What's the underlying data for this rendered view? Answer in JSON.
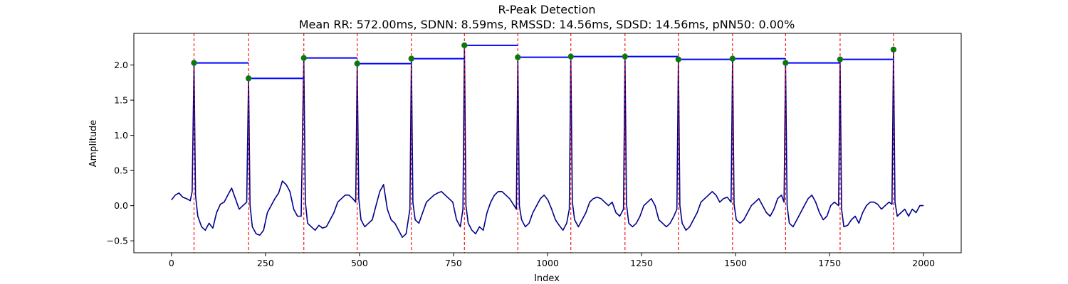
{
  "chart_data": {
    "type": "line",
    "title": "R-Peak Detection",
    "subtitle": "Mean RR: 572.00ms, SDNN: 8.59ms, RMSSD: 14.56ms, SDSD: 14.56ms, pNN50: 0.00%",
    "xlabel": "Index",
    "ylabel": "Amplitude",
    "xlim": [
      -100,
      2100
    ],
    "ylim": [
      -0.67,
      2.45
    ],
    "xticks": [
      0,
      250,
      500,
      750,
      1000,
      1250,
      1500,
      1750,
      2000
    ],
    "yticks": [
      -0.5,
      0.0,
      0.5,
      1.0,
      1.5,
      2.0
    ],
    "ytick_labels": [
      "−0.5",
      "0.0",
      "0.5",
      "1.0",
      "1.5",
      "2.0"
    ],
    "grid": false,
    "colors": {
      "signal": "#00008b",
      "peak_marker": "#008000",
      "peak_line": "#ff0000",
      "rr_segment": "#0000ff"
    },
    "peaks": [
      {
        "x": 60,
        "y": 2.03
      },
      {
        "x": 205,
        "y": 1.81
      },
      {
        "x": 352,
        "y": 2.1
      },
      {
        "x": 494,
        "y": 2.02
      },
      {
        "x": 638,
        "y": 2.09
      },
      {
        "x": 779,
        "y": 2.28
      },
      {
        "x": 921,
        "y": 2.11
      },
      {
        "x": 1062,
        "y": 2.12
      },
      {
        "x": 1206,
        "y": 2.12
      },
      {
        "x": 1348,
        "y": 2.08
      },
      {
        "x": 1492,
        "y": 2.09
      },
      {
        "x": 1633,
        "y": 2.03
      },
      {
        "x": 1778,
        "y": 2.08
      },
      {
        "x": 1920,
        "y": 2.22
      }
    ],
    "signal": {
      "x": [
        0,
        10,
        20,
        30,
        40,
        50,
        55,
        60,
        64,
        70,
        80,
        90,
        100,
        110,
        120,
        130,
        140,
        150,
        160,
        170,
        180,
        190,
        200,
        205,
        209,
        215,
        225,
        235,
        245,
        255,
        265,
        275,
        285,
        295,
        305,
        315,
        325,
        335,
        345,
        352,
        356,
        362,
        372,
        382,
        392,
        402,
        412,
        422,
        432,
        442,
        452,
        462,
        472,
        482,
        490,
        494,
        498,
        504,
        514,
        524,
        534,
        544,
        554,
        564,
        574,
        584,
        594,
        604,
        614,
        624,
        634,
        638,
        642,
        648,
        658,
        668,
        678,
        688,
        698,
        708,
        718,
        728,
        738,
        748,
        758,
        768,
        775,
        779,
        783,
        789,
        799,
        809,
        819,
        829,
        839,
        849,
        859,
        869,
        879,
        889,
        899,
        909,
        917,
        921,
        925,
        931,
        941,
        951,
        961,
        971,
        981,
        991,
        1001,
        1011,
        1021,
        1031,
        1041,
        1051,
        1058,
        1062,
        1066,
        1072,
        1082,
        1092,
        1102,
        1112,
        1122,
        1132,
        1142,
        1152,
        1162,
        1172,
        1182,
        1192,
        1202,
        1206,
        1210,
        1216,
        1226,
        1236,
        1246,
        1256,
        1266,
        1276,
        1286,
        1296,
        1306,
        1316,
        1326,
        1336,
        1344,
        1348,
        1352,
        1358,
        1368,
        1378,
        1388,
        1398,
        1408,
        1418,
        1428,
        1438,
        1448,
        1458,
        1468,
        1478,
        1488,
        1492,
        1496,
        1502,
        1512,
        1522,
        1532,
        1542,
        1552,
        1562,
        1572,
        1582,
        1592,
        1602,
        1612,
        1622,
        1629,
        1633,
        1637,
        1643,
        1653,
        1663,
        1673,
        1683,
        1693,
        1703,
        1713,
        1723,
        1733,
        1743,
        1753,
        1763,
        1774,
        1778,
        1782,
        1788,
        1798,
        1808,
        1818,
        1828,
        1838,
        1848,
        1858,
        1868,
        1878,
        1888,
        1898,
        1908,
        1916,
        1920,
        1924,
        1930,
        1940,
        1950,
        1960,
        1970,
        1980,
        1990,
        2000
      ],
      "y": [
        0.08,
        0.15,
        0.18,
        0.12,
        0.1,
        0.07,
        0.2,
        2.03,
        0.15,
        -0.15,
        -0.3,
        -0.35,
        -0.25,
        -0.32,
        -0.1,
        0.02,
        0.05,
        0.15,
        0.25,
        0.1,
        -0.05,
        0.0,
        0.05,
        1.81,
        0.0,
        -0.3,
        -0.4,
        -0.42,
        -0.35,
        -0.1,
        0.0,
        0.1,
        0.18,
        0.35,
        0.3,
        0.2,
        -0.05,
        -0.15,
        -0.15,
        2.1,
        0.05,
        -0.25,
        -0.3,
        -0.35,
        -0.28,
        -0.32,
        -0.3,
        -0.2,
        -0.1,
        0.05,
        0.1,
        0.15,
        0.15,
        0.1,
        0.05,
        2.02,
        0.1,
        -0.2,
        -0.3,
        -0.25,
        -0.2,
        0.0,
        0.2,
        0.3,
        -0.05,
        -0.2,
        -0.25,
        -0.35,
        -0.45,
        -0.4,
        -0.05,
        2.09,
        0.05,
        -0.2,
        -0.25,
        -0.1,
        0.05,
        0.1,
        0.15,
        0.18,
        0.2,
        0.15,
        0.1,
        0.05,
        -0.2,
        -0.3,
        -0.05,
        2.28,
        0.0,
        -0.25,
        -0.35,
        -0.4,
        -0.3,
        -0.35,
        -0.1,
        0.05,
        0.15,
        0.2,
        0.2,
        0.15,
        0.1,
        0.02,
        -0.05,
        2.11,
        0.0,
        -0.2,
        -0.3,
        -0.25,
        -0.1,
        0.0,
        0.1,
        0.15,
        0.08,
        -0.05,
        -0.2,
        -0.28,
        -0.35,
        -0.25,
        -0.05,
        2.12,
        0.05,
        -0.2,
        -0.3,
        -0.2,
        -0.1,
        0.05,
        0.1,
        0.12,
        0.1,
        0.05,
        0.0,
        0.05,
        -0.1,
        -0.15,
        -0.05,
        2.12,
        0.02,
        -0.25,
        -0.3,
        -0.25,
        -0.15,
        0.0,
        0.05,
        0.1,
        0.0,
        -0.2,
        -0.25,
        -0.3,
        -0.25,
        -0.15,
        -0.05,
        2.08,
        0.0,
        -0.25,
        -0.35,
        -0.3,
        -0.2,
        -0.1,
        0.05,
        0.1,
        0.15,
        0.2,
        0.15,
        0.05,
        0.1,
        0.12,
        0.05,
        2.09,
        0.02,
        -0.2,
        -0.25,
        -0.2,
        -0.1,
        0.0,
        0.05,
        0.1,
        0.0,
        -0.1,
        -0.15,
        -0.05,
        0.1,
        0.15,
        0.05,
        2.03,
        0.0,
        -0.25,
        -0.3,
        -0.2,
        -0.1,
        0.0,
        0.1,
        0.15,
        0.05,
        -0.1,
        -0.2,
        -0.15,
        0.0,
        0.05,
        0.0,
        2.08,
        -0.05,
        -0.3,
        -0.28,
        -0.2,
        -0.15,
        -0.25,
        -0.1,
        0.0,
        0.05,
        0.05,
        0.02,
        -0.05,
        0.0,
        0.05,
        0.02,
        2.22,
        0.05,
        -0.15,
        -0.1,
        -0.05,
        -0.15,
        -0.05,
        -0.1,
        0.0,
        0.0
      ]
    }
  }
}
